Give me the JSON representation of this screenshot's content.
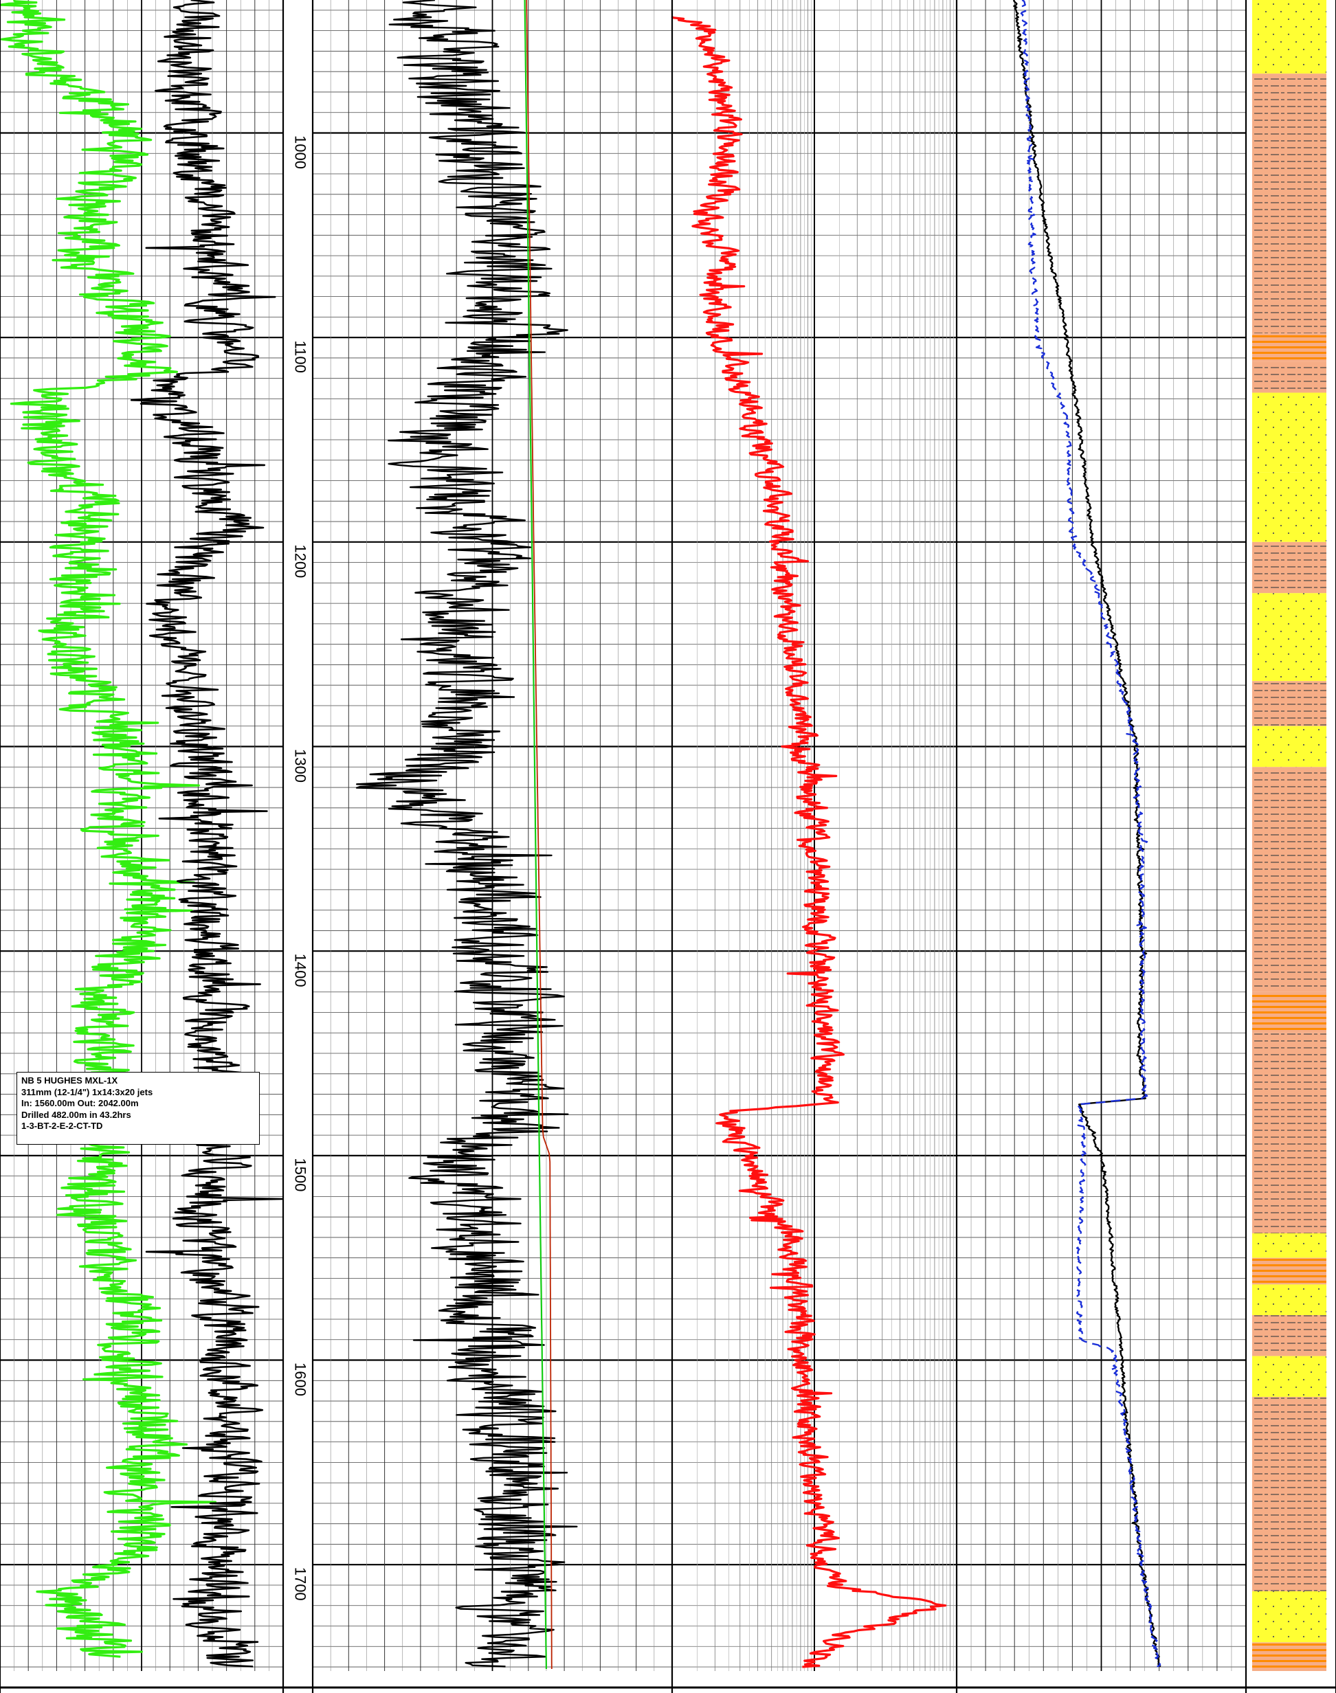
{
  "chart_data": {
    "type": "line",
    "title": "",
    "depth_axis": {
      "range": [
        935,
        1752
      ],
      "major_ticks": [
        1000,
        1100,
        1200,
        1300,
        1400,
        1500,
        1600,
        1700
      ],
      "tick_labels": [
        "1000",
        "1100",
        "1200",
        "1300",
        "1400",
        "1500",
        "1600",
        "1700"
      ],
      "minor_interval": 10,
      "orientation": "vertical, labels rotated"
    },
    "tracks": [
      {
        "name": "track-1",
        "scale": "linear",
        "x_range": [
          0,
          1
        ],
        "series": [
          {
            "color": "#33ee11",
            "width": 3.2,
            "style": "solid",
            "noise": 0.1,
            "seed": 11,
            "depth": [
              935,
              960,
              970,
              985,
              1000,
              1030,
              1050,
              1075,
              1090,
              1100,
              1118,
              1125,
              1130,
              1145,
              1160,
              1180,
              1200,
              1215,
              1230,
              1245,
              1260,
              1275,
              1290,
              1300,
              1320,
              1340,
              1360,
              1380,
              1400,
              1420,
              1440,
              1460,
              1480,
              1500,
              1520,
              1540,
              1560,
              1580,
              1600,
              1620,
              1640,
              1660,
              1680,
              1700,
              1715,
              1730,
              1745
            ],
            "value": [
              0.1,
              0.14,
              0.2,
              0.35,
              0.42,
              0.34,
              0.28,
              0.36,
              0.45,
              0.47,
              0.5,
              0.22,
              0.14,
              0.16,
              0.2,
              0.33,
              0.3,
              0.26,
              0.34,
              0.18,
              0.26,
              0.34,
              0.36,
              0.44,
              0.46,
              0.4,
              0.52,
              0.5,
              0.46,
              0.38,
              0.34,
              0.4,
              0.42,
              0.34,
              0.3,
              0.36,
              0.42,
              0.46,
              0.44,
              0.5,
              0.54,
              0.48,
              0.5,
              0.46,
              0.2,
              0.3,
              0.4
            ]
          },
          {
            "color": "#000000",
            "width": 2.6,
            "style": "solid",
            "noise": 0.09,
            "seed": 23,
            "depth": [
              935,
              960,
              980,
              1000,
              1050,
              1100,
              1115,
              1120,
              1130,
              1150,
              1180,
              1193,
              1200,
              1230,
              1260,
              1300,
              1340,
              1380,
              1420,
              1450,
              1480,
              1500,
              1530,
              1560,
              1600,
              1650,
              1700,
              1720,
              1750
            ],
            "value": [
              0.72,
              0.68,
              0.66,
              0.7,
              0.75,
              0.78,
              0.84,
              0.6,
              0.56,
              0.7,
              0.74,
              0.86,
              0.72,
              0.58,
              0.66,
              0.7,
              0.76,
              0.72,
              0.76,
              0.74,
              0.74,
              0.8,
              0.7,
              0.76,
              0.8,
              0.82,
              0.78,
              0.74,
              0.82
            ]
          }
        ]
      },
      {
        "name": "track-2",
        "scale": "linear",
        "x_range": [
          0,
          1
        ],
        "series": [
          {
            "color": "#000000",
            "width": 2.4,
            "style": "solid",
            "noise": 0.12,
            "seed": 37,
            "depth": [
              935,
              960,
              1000,
              1050,
              1100,
              1130,
              1160,
              1200,
              1250,
              1300,
              1320,
              1350,
              1400,
              1450,
              1490,
              1500,
              1530,
              1600,
              1650,
              1700,
              1725,
              1750
            ],
            "value": [
              0.4,
              0.36,
              0.45,
              0.52,
              0.56,
              0.4,
              0.36,
              0.46,
              0.4,
              0.44,
              0.24,
              0.48,
              0.52,
              0.54,
              0.56,
              0.4,
              0.46,
              0.5,
              0.56,
              0.58,
              0.52,
              0.6
            ]
          },
          {
            "color": "#11cc11",
            "width": 2.2,
            "style": "solid",
            "noise": 0.0,
            "seed": 0,
            "depth": [
              935,
              1200,
              1490,
              1752
            ],
            "value": [
              0.59,
              0.61,
              0.63,
              0.65
            ]
          },
          {
            "color": "#bb2200",
            "width": 1.8,
            "style": "solid",
            "noise": 0.0,
            "seed": 0,
            "depth": [
              935,
              1200,
              1490,
              1500,
              1752
            ],
            "value": [
              0.595,
              0.615,
              0.64,
              0.66,
              0.665
            ]
          }
        ]
      },
      {
        "name": "track-3",
        "scale": "log",
        "x_range": [
          0,
          1
        ],
        "series": [
          {
            "color": "#ff1010",
            "width": 3.2,
            "style": "solid",
            "noise": 0.045,
            "seed": 53,
            "depth": [
              943,
              948,
              955,
              970,
              985,
              1000,
              1010,
              1030,
              1040,
              1050,
              1060,
              1070,
              1090,
              1100,
              1115,
              1130,
              1148,
              1160,
              1180,
              1200,
              1250,
              1300,
              1350,
              1400,
              1450,
              1462,
              1475,
              1478,
              1500,
              1520,
              1540,
              1560,
              1600,
              1650,
              1680,
              1700,
              1710,
              1720,
              1735,
              1750
            ],
            "value": [
              0.01,
              0.12,
              0.15,
              0.16,
              0.17,
              0.2,
              0.19,
              0.18,
              0.12,
              0.14,
              0.2,
              0.14,
              0.16,
              0.18,
              0.22,
              0.26,
              0.3,
              0.34,
              0.36,
              0.38,
              0.42,
              0.46,
              0.5,
              0.52,
              0.54,
              0.54,
              0.54,
              0.18,
              0.26,
              0.32,
              0.42,
              0.44,
              0.46,
              0.5,
              0.52,
              0.54,
              0.56,
              0.95,
              0.6,
              0.48
            ]
          }
        ]
      },
      {
        "name": "track-4",
        "scale": "linear",
        "x_range": [
          0,
          1
        ],
        "series": [
          {
            "color": "#000000",
            "width": 2.4,
            "style": "solid",
            "noise": 0.006,
            "seed": 71,
            "depth": [
              935,
              1000,
              1050,
              1100,
              1150,
              1200,
              1250,
              1300,
              1350,
              1400,
              1450,
              1472,
              1475,
              1480,
              1500,
              1550,
              1600,
              1650,
              1700,
              1750
            ],
            "value": [
              0.2,
              0.26,
              0.31,
              0.38,
              0.43,
              0.47,
              0.55,
              0.62,
              0.63,
              0.64,
              0.63,
              0.65,
              0.42,
              0.44,
              0.5,
              0.54,
              0.57,
              0.6,
              0.64,
              0.7
            ]
          },
          {
            "color": "#1a2fd8",
            "width": 2.4,
            "style": "dashed",
            "noise": 0.008,
            "seed": 89,
            "depth": [
              935,
              1000,
              1060,
              1100,
              1120,
              1140,
              1200,
              1220,
              1300,
              1350,
              1400,
              1450,
              1472,
              1475,
              1490,
              1520,
              1560,
              1590,
              1595,
              1650,
              1700,
              1750
            ],
            "value": [
              0.23,
              0.25,
              0.26,
              0.28,
              0.33,
              0.38,
              0.4,
              0.48,
              0.62,
              0.64,
              0.64,
              0.64,
              0.65,
              0.42,
              0.44,
              0.43,
              0.42,
              0.43,
              0.54,
              0.6,
              0.64,
              0.7
            ]
          }
        ]
      }
    ],
    "lithology_column": {
      "legend_colors": {
        "sand": "#ffff33",
        "shale": "#f6ad86",
        "stripe": "#ff8b00"
      },
      "intervals": [
        {
          "from": 935,
          "to": 971,
          "type": "sand"
        },
        {
          "from": 971,
          "to": 1098,
          "type": "shale"
        },
        {
          "from": 1098,
          "to": 1112,
          "type": "stripes"
        },
        {
          "from": 1112,
          "to": 1127,
          "type": "shale"
        },
        {
          "from": 1127,
          "to": 1166,
          "type": "sand"
        },
        {
          "from": 1166,
          "to": 1200,
          "type": "sand"
        },
        {
          "from": 1200,
          "to": 1215,
          "type": "shale"
        },
        {
          "from": 1215,
          "to": 1225,
          "type": "shale"
        },
        {
          "from": 1225,
          "to": 1268,
          "type": "sand"
        },
        {
          "from": 1268,
          "to": 1290,
          "type": "shale"
        },
        {
          "from": 1290,
          "to": 1310,
          "type": "sand"
        },
        {
          "from": 1310,
          "to": 1420,
          "type": "shale"
        },
        {
          "from": 1420,
          "to": 1440,
          "type": "stripes"
        },
        {
          "from": 1440,
          "to": 1538,
          "type": "shale"
        },
        {
          "from": 1538,
          "to": 1550,
          "type": "sand"
        },
        {
          "from": 1550,
          "to": 1563,
          "type": "stripes"
        },
        {
          "from": 1563,
          "to": 1578,
          "type": "sand"
        },
        {
          "from": 1578,
          "to": 1598,
          "type": "shale"
        },
        {
          "from": 1598,
          "to": 1618,
          "type": "sand"
        },
        {
          "from": 1618,
          "to": 1713,
          "type": "shale"
        },
        {
          "from": 1713,
          "to": 1738,
          "type": "sand"
        },
        {
          "from": 1738,
          "to": 1752,
          "type": "stripes"
        }
      ]
    },
    "grid": true
  },
  "annotation": {
    "lines": [
      "NB 5 HUGHES MXL-1X",
      "311mm (12-1/4\")  1x14:3x20 jets",
      "In: 1560.00m  Out: 2042.00m",
      "Drilled 482.00m in 43.2hrs",
      "1-3-BT-2-E-2-CT-TD"
    ]
  }
}
